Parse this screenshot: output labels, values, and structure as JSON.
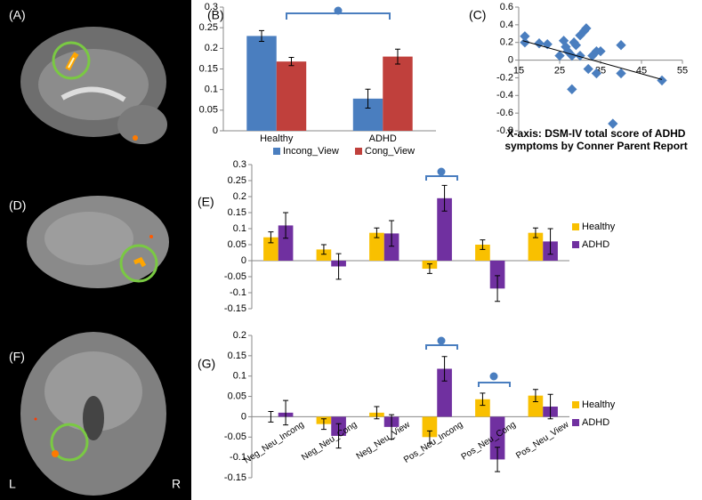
{
  "panels": {
    "a": "(A)",
    "d": "(D)",
    "f": "(F)",
    "left": "L",
    "right": "R"
  },
  "chart_data": [
    {
      "type": "bar",
      "panel_label": "(B)",
      "categories": [
        "Healthy",
        "ADHD"
      ],
      "series": [
        {
          "name": "Incong_View",
          "color": "#4a7ebf",
          "values": [
            0.23,
            0.078
          ],
          "errors": [
            0.013,
            0.023
          ]
        },
        {
          "name": "Cong_View",
          "color": "#c0403c",
          "values": [
            0.168,
            0.18
          ],
          "errors": [
            0.01,
            0.018
          ]
        }
      ],
      "ylim": [
        0,
        0.3
      ],
      "yticks": [
        0,
        0.05,
        0.1,
        0.15,
        0.2,
        0.25,
        0.3
      ],
      "legend": "bottom"
    },
    {
      "type": "scatter",
      "panel_label": "(C)",
      "x": [
        16.5,
        16.5,
        20,
        22,
        25,
        26,
        26.5,
        27,
        28,
        28.5,
        28,
        29,
        30,
        30,
        31,
        31.5,
        32,
        33,
        34,
        35,
        34,
        38,
        40,
        40,
        50
      ],
      "y": [
        0.27,
        0.2,
        0.19,
        0.18,
        0.05,
        0.22,
        0.15,
        0.1,
        0.05,
        0.2,
        -0.33,
        0.17,
        0.05,
        0.28,
        0.33,
        0.36,
        -0.1,
        0.05,
        0.1,
        0.1,
        -0.15,
        -0.72,
        0.17,
        -0.15,
        -0.23
      ],
      "color": "#4a7ebf",
      "xlim": [
        15,
        55
      ],
      "xticks": [
        15,
        25,
        35,
        45,
        55
      ],
      "ylim": [
        -0.8,
        0.6
      ],
      "yticks": [
        -0.8,
        -0.6,
        -0.4,
        -0.2,
        0,
        0.2,
        0.4,
        0.6
      ],
      "trendline": {
        "x": [
          16,
          50
        ],
        "y": [
          0.22,
          -0.22
        ]
      },
      "xlabel": "X-axis: DSM-IV total score of ADHD symptoms by Conner Parent Report"
    },
    {
      "type": "bar",
      "panel_label": "(E)",
      "categories": [
        null,
        null,
        null,
        null,
        null,
        null
      ],
      "series": [
        {
          "name": "Healthy",
          "color": "#f9c000",
          "values": [
            0.073,
            0.035,
            0.087,
            -0.025,
            0.05,
            0.087
          ],
          "errors": [
            0.017,
            0.015,
            0.015,
            0.015,
            0.015,
            0.015
          ]
        },
        {
          "name": "ADHD",
          "color": "#7030a0",
          "values": [
            0.11,
            -0.018,
            0.085,
            0.195,
            -0.087,
            0.06
          ],
          "errors": [
            0.04,
            0.04,
            0.04,
            0.04,
            0.04,
            0.04
          ]
        }
      ],
      "ylim": [
        -0.15,
        0.3
      ],
      "yticks": [
        -0.15,
        -0.1,
        -0.05,
        0,
        0.05,
        0.1,
        0.15,
        0.2,
        0.25,
        0.3
      ],
      "legend": "right"
    },
    {
      "type": "bar",
      "panel_label": "(G)",
      "categories": [
        "Neg_Neu_Incong",
        "Neg_Neu_Cong",
        "Neg_Neu_View",
        "Pos_Neu_Incong",
        "Pos_Neu_Cong",
        "Pos_Neu_View"
      ],
      "series": [
        {
          "name": "Healthy",
          "color": "#f9c000",
          "values": [
            0,
            -0.018,
            0.01,
            -0.05,
            0.043,
            0.052
          ],
          "errors": [
            0.013,
            0.013,
            0.015,
            0.015,
            0.015,
            0.015
          ]
        },
        {
          "name": "ADHD",
          "color": "#7030a0",
          "values": [
            0.01,
            -0.047,
            -0.025,
            0.118,
            -0.105,
            0.025
          ],
          "errors": [
            0.03,
            0.03,
            0.03,
            0.03,
            0.03,
            0.03
          ]
        }
      ],
      "ylim": [
        -0.15,
        0.2
      ],
      "yticks": [
        -0.15,
        -0.1,
        -0.05,
        0,
        0.05,
        0.1,
        0.15,
        0.2
      ],
      "legend": "right"
    }
  ]
}
